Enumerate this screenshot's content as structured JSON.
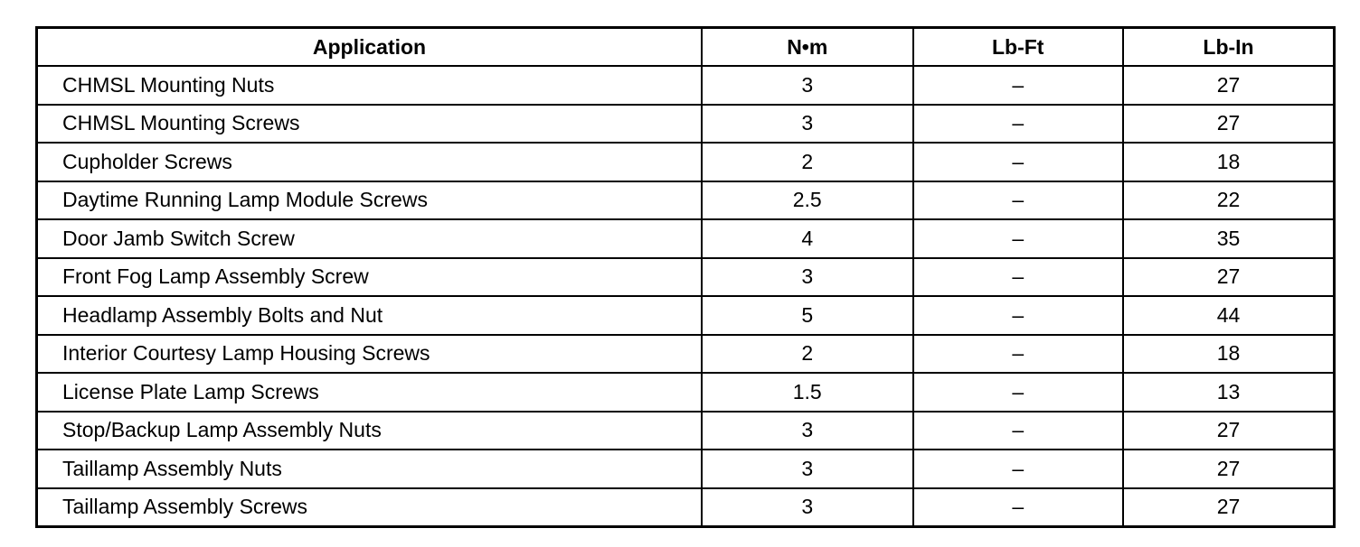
{
  "table": {
    "headers": [
      "Application",
      "N•m",
      "Lb-Ft",
      "Lb-In"
    ],
    "rows": [
      [
        "CHMSL Mounting Nuts",
        "3",
        "–",
        "27"
      ],
      [
        "CHMSL Mounting Screws",
        "3",
        "–",
        "27"
      ],
      [
        "Cupholder Screws",
        "2",
        "–",
        "18"
      ],
      [
        "Daytime Running Lamp Module Screws",
        "2.5",
        "–",
        "22"
      ],
      [
        "Door Jamb Switch Screw",
        "4",
        "–",
        "35"
      ],
      [
        "Front Fog Lamp Assembly Screw",
        "3",
        "–",
        "27"
      ],
      [
        "Headlamp Assembly Bolts and Nut",
        "5",
        "–",
        "44"
      ],
      [
        "Interior Courtesy Lamp Housing Screws",
        "2",
        "–",
        "18"
      ],
      [
        "License Plate Lamp Screws",
        "1.5",
        "–",
        "13"
      ],
      [
        "Stop/Backup Lamp Assembly Nuts",
        "3",
        "–",
        "27"
      ],
      [
        "Taillamp Assembly Nuts",
        "3",
        "–",
        "27"
      ],
      [
        "Taillamp Assembly Screws",
        "3",
        "–",
        "27"
      ]
    ]
  }
}
